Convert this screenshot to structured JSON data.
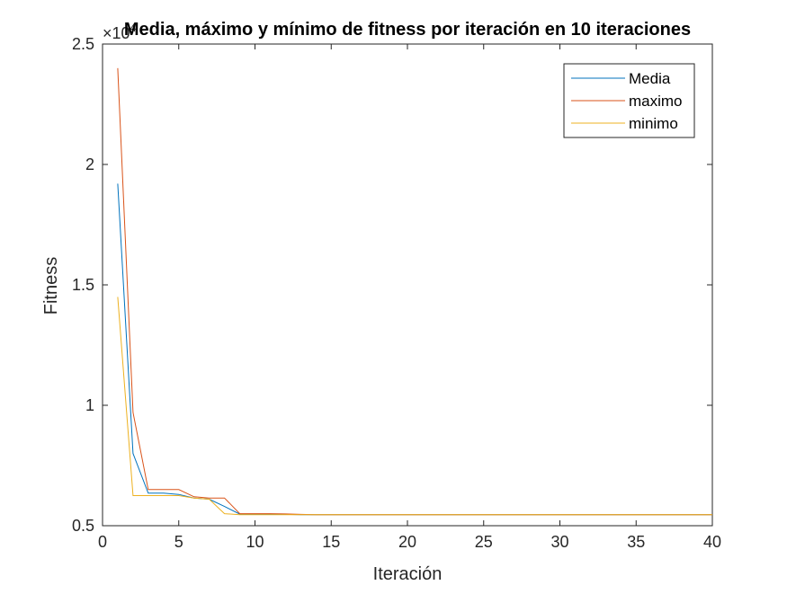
{
  "chart_data": {
    "type": "line",
    "title": "Media, máximo y mínimo de fitness por iteración en 10 iteraciones",
    "xlabel": "Iteración",
    "ylabel": "Fitness",
    "y_exponent_label": "×10",
    "y_exponent_power": "4",
    "xlim": [
      0,
      40
    ],
    "ylim": [
      5000,
      25000
    ],
    "grid": false,
    "legend_position": "top-right",
    "x_ticks": [
      0,
      5,
      10,
      15,
      20,
      25,
      30,
      35,
      40
    ],
    "x_tick_labels": [
      "0",
      "5",
      "10",
      "15",
      "20",
      "25",
      "30",
      "35",
      "40"
    ],
    "y_ticks": [
      5000,
      10000,
      15000,
      20000,
      25000
    ],
    "y_tick_labels": [
      "0.5",
      "1",
      "1.5",
      "2",
      "2.5"
    ],
    "series": [
      {
        "name": "Media",
        "color": "#0072BD",
        "x": [
          1,
          2,
          3,
          4,
          5,
          6,
          7,
          8,
          9,
          10,
          11,
          12,
          13,
          14,
          15,
          20,
          25,
          30,
          35,
          40
        ],
        "y": [
          19200,
          8000,
          6350,
          6350,
          6300,
          6150,
          6100,
          5800,
          5480,
          5480,
          5480,
          5470,
          5460,
          5460,
          5460,
          5460,
          5460,
          5460,
          5460,
          5460
        ]
      },
      {
        "name": "maximo",
        "color": "#D95319",
        "x": [
          1,
          2,
          3,
          4,
          5,
          6,
          7,
          8,
          9,
          10,
          11,
          12,
          13,
          14,
          15,
          20,
          25,
          30,
          35,
          40
        ],
        "y": [
          24000,
          9700,
          6500,
          6500,
          6500,
          6200,
          6150,
          6150,
          5500,
          5500,
          5500,
          5490,
          5470,
          5460,
          5460,
          5460,
          5460,
          5460,
          5460,
          5460
        ]
      },
      {
        "name": "minimo",
        "color": "#EDB120",
        "x": [
          1,
          2,
          3,
          4,
          5,
          6,
          7,
          8,
          9,
          10,
          11,
          12,
          13,
          14,
          15,
          20,
          25,
          30,
          35,
          40
        ],
        "y": [
          14500,
          6250,
          6250,
          6250,
          6250,
          6150,
          6100,
          5500,
          5460,
          5460,
          5460,
          5460,
          5460,
          5460,
          5460,
          5460,
          5460,
          5460,
          5460,
          5460
        ]
      }
    ]
  }
}
